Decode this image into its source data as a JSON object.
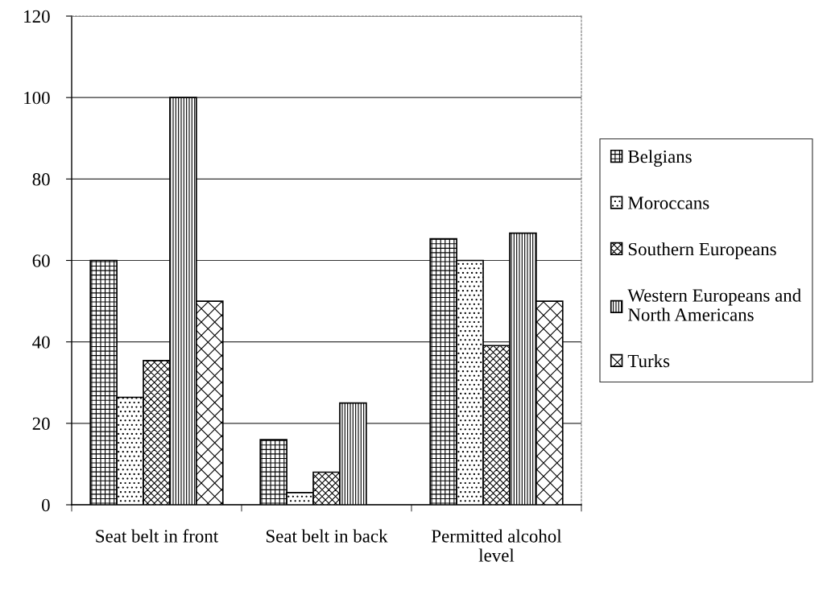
{
  "chart_data": {
    "type": "bar",
    "categories": [
      "Seat belt in front",
      "Seat belt in back",
      "Permitted alcohol level"
    ],
    "series": [
      {
        "name": "Belgians",
        "color": "#000000",
        "values": [
          60,
          16,
          65.3
        ]
      },
      {
        "name": "Moroccans",
        "color": "#000000",
        "values": [
          26.4,
          3,
          60
        ]
      },
      {
        "name": "Southern Europeans",
        "color": "#000000",
        "values": [
          35.4,
          8,
          39.1
        ]
      },
      {
        "name": "Western Europeans and North Americans",
        "color": "#000000",
        "values": [
          100,
          25,
          66.7
        ]
      },
      {
        "name": "Turks",
        "color": "#000000",
        "values": [
          50,
          null,
          50
        ]
      }
    ],
    "ylim": [
      0,
      120
    ],
    "yticks": [
      0,
      20,
      40,
      60,
      80,
      100,
      120
    ],
    "grid": "y",
    "legend": "right"
  }
}
